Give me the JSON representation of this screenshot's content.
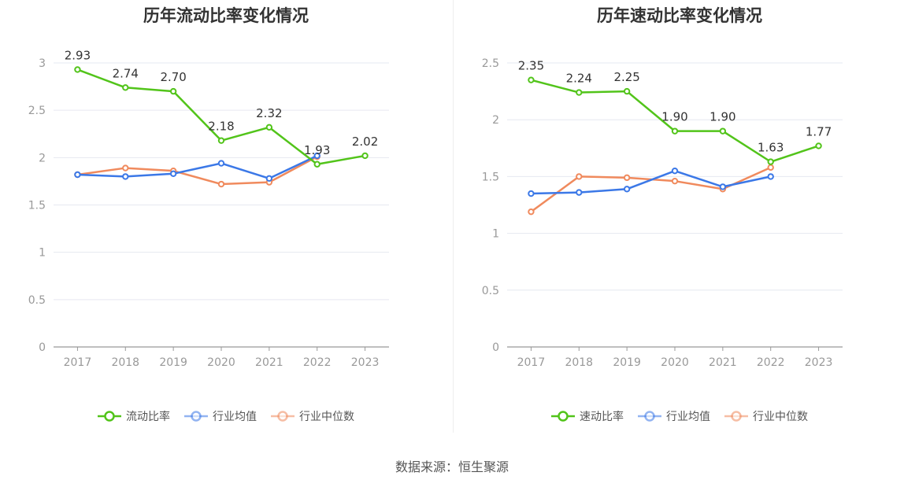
{
  "source_label": "数据来源：恒生聚源",
  "chart_data": [
    {
      "type": "line",
      "title": "历年流动比率变化情况",
      "categories": [
        "2017",
        "2018",
        "2019",
        "2020",
        "2021",
        "2022",
        "2023"
      ],
      "ylim": [
        0,
        3
      ],
      "yticks": [
        "0",
        "0.5",
        "1",
        "1.5",
        "2",
        "2.5",
        "3"
      ],
      "grid": true,
      "legend_position": "bottom",
      "series": [
        {
          "name": "流动比率",
          "color": "#52c41a",
          "values": [
            2.93,
            2.74,
            2.7,
            2.18,
            2.32,
            1.93,
            2.02
          ],
          "labels": [
            "2.93",
            "2.74",
            "2.70",
            "2.18",
            "2.32",
            "1.93",
            "2.02"
          ]
        },
        {
          "name": "行业均值",
          "color": "#3b78e7",
          "values": [
            1.82,
            1.8,
            1.83,
            1.94,
            1.78,
            2.02,
            null
          ]
        },
        {
          "name": "行业中位数",
          "color": "#f08a5d",
          "values": [
            1.82,
            1.89,
            1.86,
            1.72,
            1.74,
            2.01,
            null
          ]
        }
      ]
    },
    {
      "type": "line",
      "title": "历年速动比率变化情况",
      "categories": [
        "2017",
        "2018",
        "2019",
        "2020",
        "2021",
        "2022",
        "2023"
      ],
      "ylim": [
        0,
        2.5
      ],
      "yticks": [
        "0",
        "0.5",
        "1",
        "1.5",
        "2",
        "2.5"
      ],
      "grid": true,
      "legend_position": "bottom",
      "series": [
        {
          "name": "速动比率",
          "color": "#52c41a",
          "values": [
            2.35,
            2.24,
            2.25,
            1.9,
            1.9,
            1.63,
            1.77
          ],
          "labels": [
            "2.35",
            "2.24",
            "2.25",
            "1.90",
            "1.90",
            "1.63",
            "1.77"
          ]
        },
        {
          "name": "行业均值",
          "color": "#3b78e7",
          "values": [
            1.35,
            1.36,
            1.39,
            1.55,
            1.41,
            1.5,
            null
          ]
        },
        {
          "name": "行业中位数",
          "color": "#f08a5d",
          "values": [
            1.19,
            1.5,
            1.49,
            1.46,
            1.39,
            1.58,
            null
          ]
        }
      ]
    }
  ]
}
